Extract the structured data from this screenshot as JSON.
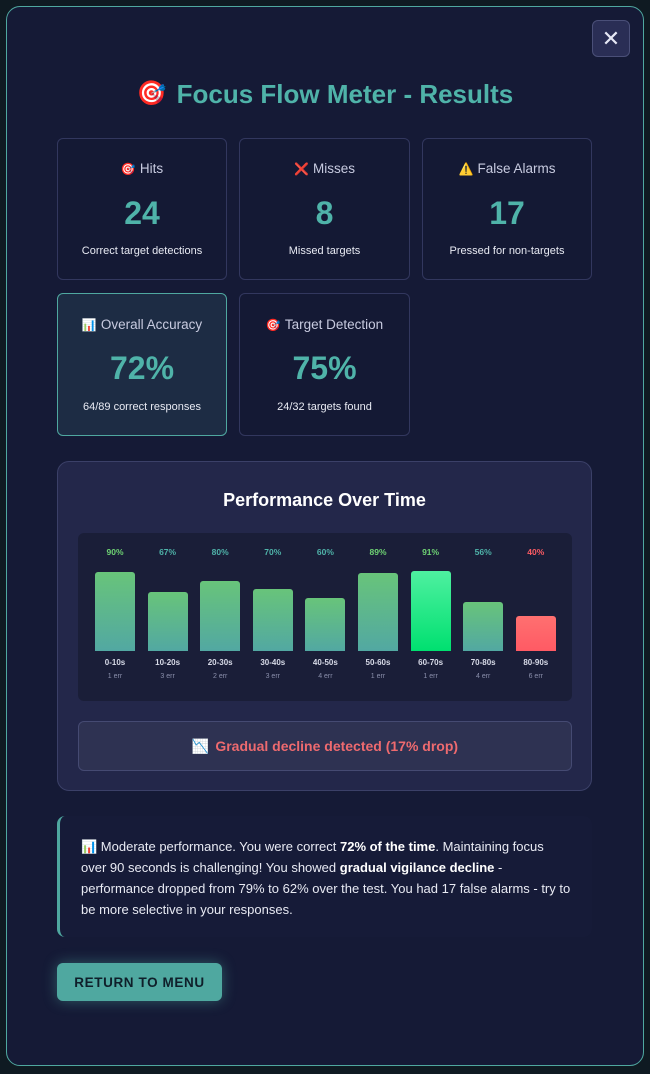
{
  "header": {
    "title_icon": "🎯",
    "title": "Focus Flow Meter - Results",
    "close_symbol": "✕"
  },
  "stats": [
    {
      "icon": "🎯",
      "label": "Hits",
      "value": "24",
      "sub": "Correct target detections"
    },
    {
      "icon": "❌",
      "label": "Misses",
      "value": "8",
      "sub": "Missed targets"
    },
    {
      "icon": "⚠️",
      "label": "False Alarms",
      "value": "17",
      "sub": "Pressed for non-targets"
    },
    {
      "icon": "📊",
      "label": "Overall Accuracy",
      "value": "72%",
      "sub": "64/89 correct responses"
    },
    {
      "icon": "🎯",
      "label": "Target Detection",
      "value": "75%",
      "sub": "24/32 targets found"
    }
  ],
  "performance": {
    "title": "Performance Over Time",
    "decline_icon": "📉",
    "decline_text": "Gradual decline detected (17% drop)"
  },
  "chart_data": {
    "type": "bar",
    "categories": [
      "0-10s",
      "10-20s",
      "20-30s",
      "30-40s",
      "40-50s",
      "50-60s",
      "60-70s",
      "70-80s",
      "80-90s"
    ],
    "values": [
      90,
      67,
      80,
      70,
      60,
      89,
      91,
      56,
      40
    ],
    "value_labels": [
      "90%",
      "67%",
      "80%",
      "70%",
      "60%",
      "89%",
      "91%",
      "56%",
      "40%"
    ],
    "error_labels": [
      "1 err",
      "3 err",
      "2 err",
      "3 err",
      "4 err",
      "1 err",
      "1 err",
      "4 err",
      "6 err"
    ],
    "ylim": [
      0,
      100
    ],
    "colors": {
      "normal_top": "#68c47a",
      "normal_bottom": "#52a8a2",
      "best_top": "#4ef0a0",
      "best_bottom": "#00e070",
      "low_top": "#ff7070",
      "low_bottom": "#ff5a64",
      "label_teal": "#4fb3a9",
      "label_green": "#6fd474",
      "label_red": "#ff5c64"
    }
  },
  "summary": {
    "icon": "📊",
    "text_1": " Moderate performance. You were correct ",
    "bold_1": "72% of the time",
    "text_2": ". Maintaining focus over 90 seconds is challenging! You showed ",
    "bold_2": "gradual vigilance decline",
    "text_3": " - performance dropped from 79% to 62% over the test. You had 17 false alarms - try to be more selective in your responses."
  },
  "menu_button": "RETURN TO MENU"
}
